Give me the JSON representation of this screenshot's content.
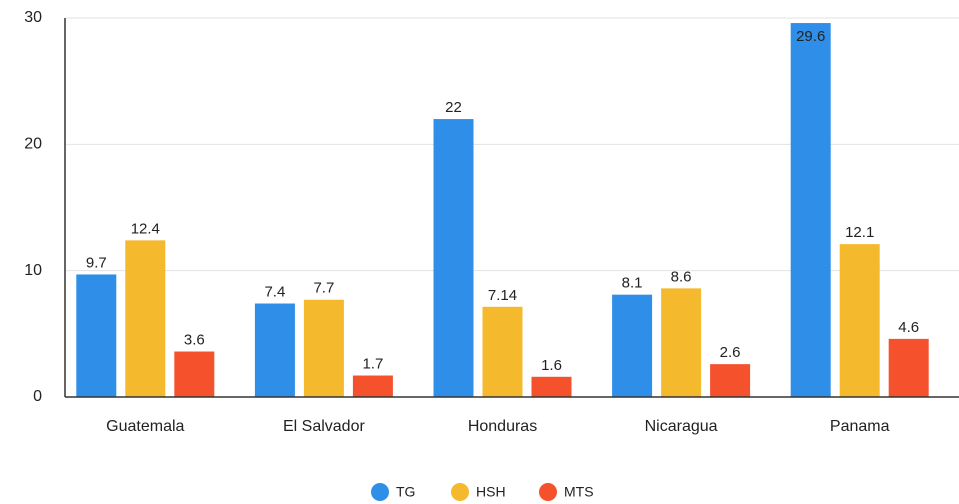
{
  "chart_data": {
    "type": "bar",
    "categories": [
      "Guatemala",
      "El Salvador",
      "Honduras",
      "Nicaragua",
      "Panama"
    ],
    "series": [
      {
        "name": "TG",
        "color": "#2f8fe8",
        "values": [
          9.7,
          7.4,
          22,
          8.1,
          29.6
        ]
      },
      {
        "name": "HSH",
        "color": "#f5b92e",
        "values": [
          12.4,
          7.7,
          7.14,
          8.6,
          12.1
        ]
      },
      {
        "name": "MTS",
        "color": "#f4512c",
        "values": [
          3.6,
          1.7,
          1.6,
          2.6,
          4.6
        ]
      }
    ],
    "ylim": [
      0,
      30
    ],
    "yticks": [
      0,
      10,
      20,
      30
    ],
    "grid": true,
    "legend": "bottom"
  }
}
